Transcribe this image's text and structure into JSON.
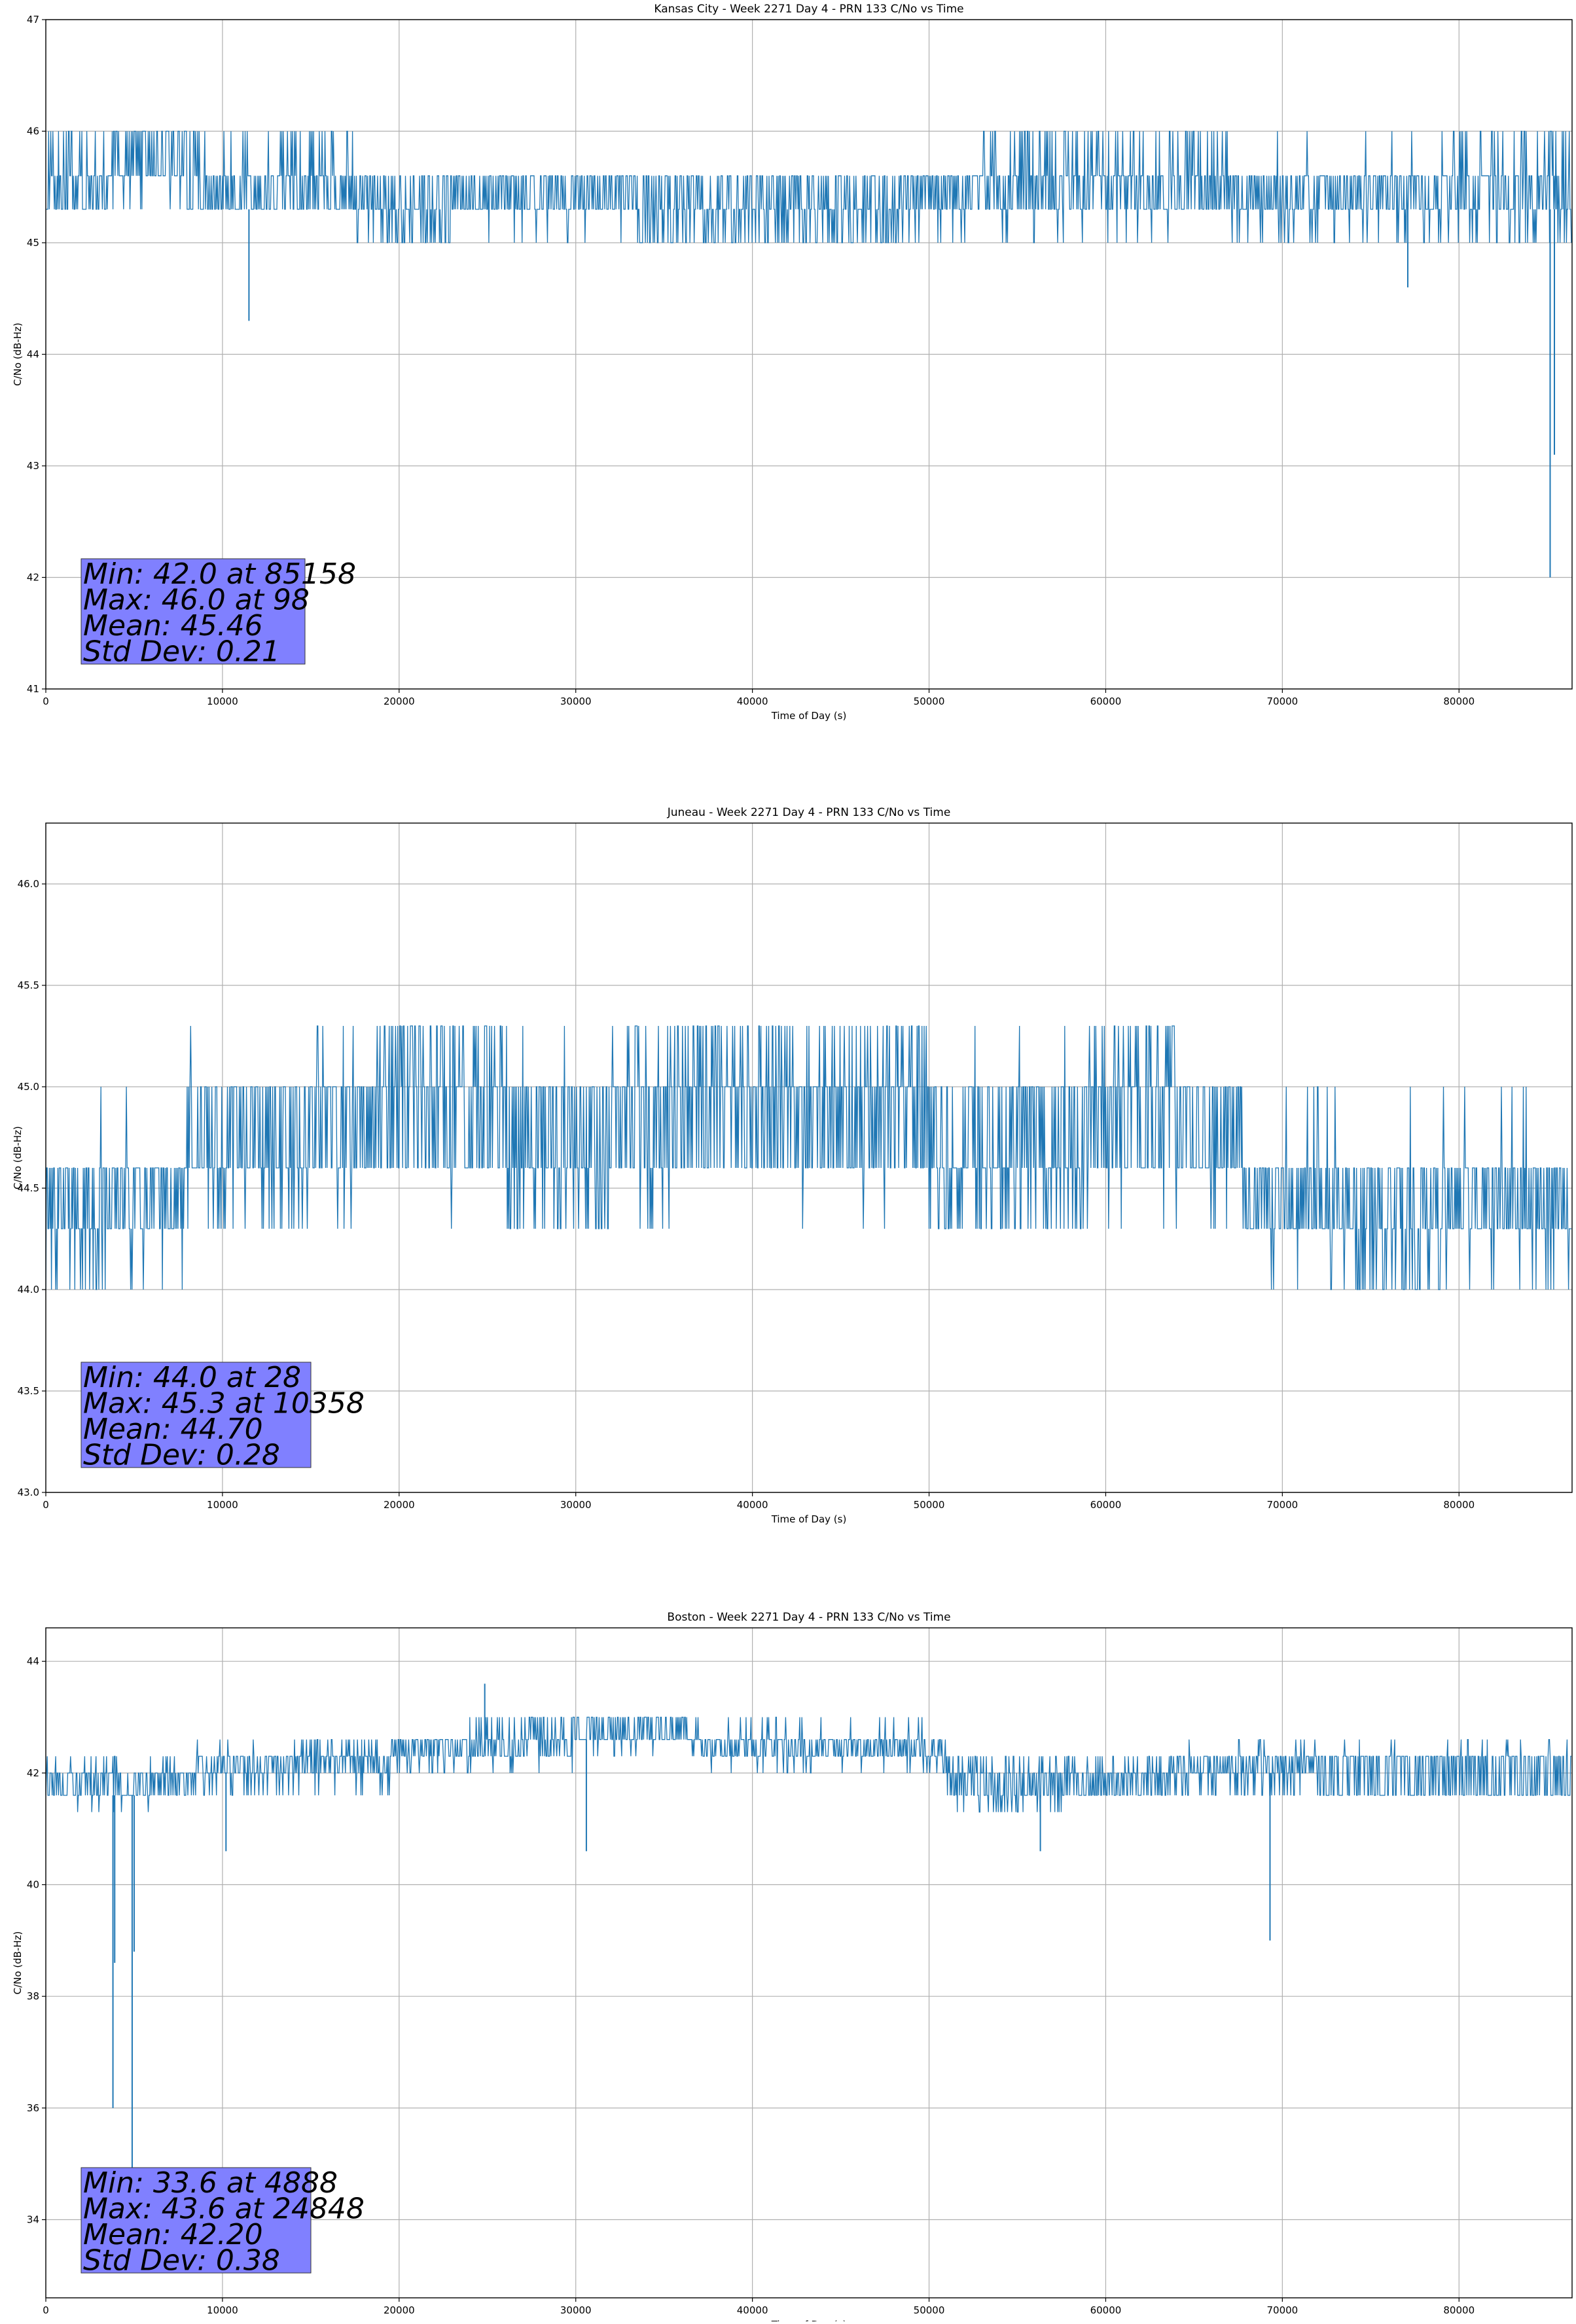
{
  "chart_data": [
    {
      "type": "line",
      "title": "Kansas City - Week 2271 Day 4 - PRN 133 C/No vs Time",
      "xlabel": "Time of Day (s)",
      "ylabel": "C/No (dB-Hz)",
      "xlim": [
        0,
        86400
      ],
      "ylim": [
        41,
        47
      ],
      "xticks": [
        0,
        10000,
        20000,
        30000,
        40000,
        50000,
        60000,
        70000,
        80000
      ],
      "yticks": [
        41,
        42,
        43,
        44,
        45,
        46,
        47
      ],
      "ytick_labels": [
        "41",
        "42",
        "43",
        "44",
        "45",
        "46",
        "47"
      ],
      "grid": true,
      "series_color": "#1f77b4",
      "segments": [
        {
          "x": [
            0,
            4000
          ],
          "base": [
            45.3,
            45.6
          ],
          "hi": 46.0,
          "hi_prob": 0.45,
          "lo": 45.3,
          "lo_prob": 0.05
        },
        {
          "x": [
            4000,
            8000
          ],
          "base": [
            45.6,
            45.6
          ],
          "hi": 46.0,
          "hi_prob": 0.85,
          "lo": 45.3,
          "lo_prob": 0.1
        },
        {
          "x": [
            8000,
            17500
          ],
          "base": [
            45.3,
            45.6
          ],
          "hi": 46.0,
          "hi_prob": 0.3,
          "lo": 45.3,
          "lo_prob": 0.1
        },
        {
          "x": [
            17500,
            19000
          ],
          "base": [
            45.3,
            45.6
          ],
          "hi": 45.6,
          "hi_prob": 0.0,
          "lo": 45.0,
          "lo_prob": 0.3
        },
        {
          "x": [
            19000,
            23000
          ],
          "base": [
            45.3,
            45.6
          ],
          "hi": 45.6,
          "hi_prob": 0.0,
          "lo": 45.0,
          "lo_prob": 0.5
        },
        {
          "x": [
            23000,
            33500
          ],
          "base": [
            45.3,
            45.6
          ],
          "hi": 45.6,
          "hi_prob": 0.0,
          "lo": 45.0,
          "lo_prob": 0.05
        },
        {
          "x": [
            33500,
            48500
          ],
          "base": [
            45.3,
            45.6
          ],
          "hi": 45.6,
          "hi_prob": 0.0,
          "lo": 45.0,
          "lo_prob": 0.55
        },
        {
          "x": [
            48500,
            53000
          ],
          "base": [
            45.3,
            45.6
          ],
          "hi": 45.6,
          "hi_prob": 0.0,
          "lo": 45.0,
          "lo_prob": 0.15
        },
        {
          "x": [
            53000,
            67000
          ],
          "base": [
            45.3,
            45.6
          ],
          "hi": 46.0,
          "hi_prob": 0.4,
          "lo": 45.0,
          "lo_prob": 0.05
        },
        {
          "x": [
            67000,
            79000
          ],
          "base": [
            45.3,
            45.6
          ],
          "hi": 46.0,
          "hi_prob": 0.03,
          "lo": 45.0,
          "lo_prob": 0.3
        },
        {
          "x": [
            79000,
            86400
          ],
          "base": [
            45.3,
            45.6
          ],
          "hi": 46.0,
          "hi_prob": 0.4,
          "lo": 45.0,
          "lo_prob": 0.25
        }
      ],
      "dips": [
        {
          "x": 11500,
          "y": 44.3
        },
        {
          "x": 77100,
          "y": 44.6
        },
        {
          "x": 85158,
          "y": 42.0
        },
        {
          "x": 85400,
          "y": 43.1
        }
      ],
      "stats_box": [
        "Min: 42.0 at 85158",
        "Max: 46.0 at 98",
        "Mean: 45.46",
        "Std Dev: 0.21"
      ]
    },
    {
      "type": "line",
      "title": "Juneau - Week 2271 Day 4 - PRN 133 C/No vs Time",
      "xlabel": "Time of Day (s)",
      "ylabel": "C/No (dB-Hz)",
      "xlim": [
        0,
        86400
      ],
      "ylim": [
        43.0,
        46.3
      ],
      "xticks": [
        0,
        10000,
        20000,
        30000,
        40000,
        50000,
        60000,
        70000,
        80000
      ],
      "yticks": [
        43.0,
        43.5,
        44.0,
        44.5,
        45.0,
        45.5,
        46.0
      ],
      "ytick_labels": [
        "43.0",
        "43.5",
        "44.0",
        "44.5",
        "45.0",
        "45.5",
        "46.0"
      ],
      "grid": true,
      "series_color": "#1f77b4",
      "segments": [
        {
          "x": [
            0,
            3000
          ],
          "base": [
            44.3,
            44.6
          ],
          "hi": 44.6,
          "hi_prob": 0.0,
          "lo": 44.0,
          "lo_prob": 0.35
        },
        {
          "x": [
            3000,
            8000
          ],
          "base": [
            44.3,
            44.6
          ],
          "hi": 45.0,
          "hi_prob": 0.05,
          "lo": 44.0,
          "lo_prob": 0.15
        },
        {
          "x": [
            8000,
            15000
          ],
          "base": [
            44.6,
            45.0
          ],
          "hi": 45.3,
          "hi_prob": 0.05,
          "lo": 44.3,
          "lo_prob": 0.3
        },
        {
          "x": [
            15000,
            19000
          ],
          "base": [
            44.6,
            45.0
          ],
          "hi": 45.3,
          "hi_prob": 0.15,
          "lo": 44.3,
          "lo_prob": 0.05
        },
        {
          "x": [
            19000,
            26000
          ],
          "base": [
            44.6,
            45.0
          ],
          "hi": 45.3,
          "hi_prob": 0.55,
          "lo": 44.3,
          "lo_prob": 0.02
        },
        {
          "x": [
            26000,
            32000
          ],
          "base": [
            44.6,
            45.0
          ],
          "hi": 45.3,
          "hi_prob": 0.1,
          "lo": 44.3,
          "lo_prob": 0.45
        },
        {
          "x": [
            32000,
            36000
          ],
          "base": [
            44.6,
            45.0
          ],
          "hi": 45.3,
          "hi_prob": 0.3,
          "lo": 44.3,
          "lo_prob": 0.2
        },
        {
          "x": [
            36000,
            50000
          ],
          "base": [
            44.6,
            45.0
          ],
          "hi": 45.3,
          "hi_prob": 0.45,
          "lo": 44.3,
          "lo_prob": 0.02
        },
        {
          "x": [
            50000,
            59000
          ],
          "base": [
            44.6,
            45.0
          ],
          "hi": 45.3,
          "hi_prob": 0.02,
          "lo": 44.3,
          "lo_prob": 0.4
        },
        {
          "x": [
            59000,
            64000
          ],
          "base": [
            44.6,
            45.0
          ],
          "hi": 45.3,
          "hi_prob": 0.5,
          "lo": 44.3,
          "lo_prob": 0.05
        },
        {
          "x": [
            64000,
            67700
          ],
          "base": [
            44.6,
            45.0
          ],
          "hi": 45.0,
          "hi_prob": 0.0,
          "lo": 44.3,
          "lo_prob": 0.1
        },
        {
          "x": [
            67700,
            74000
          ],
          "base": [
            44.3,
            44.6
          ],
          "hi": 45.0,
          "hi_prob": 0.05,
          "lo": 44.0,
          "lo_prob": 0.05
        },
        {
          "x": [
            74000,
            79000
          ],
          "base": [
            44.3,
            44.6
          ],
          "hi": 45.0,
          "hi_prob": 0.05,
          "lo": 44.0,
          "lo_prob": 0.55
        },
        {
          "x": [
            79000,
            86400
          ],
          "base": [
            44.3,
            44.6
          ],
          "hi": 45.0,
          "hi_prob": 0.08,
          "lo": 44.0,
          "lo_prob": 0.1
        }
      ],
      "dips": [],
      "stats_box": [
        "Min: 44.0 at 28",
        "Max: 45.3 at 10358",
        "Mean: 44.70",
        "Std Dev: 0.28"
      ]
    },
    {
      "type": "line",
      "title": "Boston - Week 2271 Day 4 - PRN 133 C/No vs Time",
      "xlabel": "Time of Day (s)",
      "ylabel": "C/No (dB-Hz)",
      "xlim": [
        0,
        86400
      ],
      "ylim": [
        32.6,
        44.6
      ],
      "xticks": [
        0,
        10000,
        20000,
        30000,
        40000,
        50000,
        60000,
        70000,
        80000
      ],
      "yticks": [
        34,
        36,
        38,
        40,
        42,
        44
      ],
      "ytick_labels": [
        "34",
        "36",
        "38",
        "40",
        "42",
        "44"
      ],
      "grid": true,
      "series_color": "#1f77b4",
      "segments": [
        {
          "x": [
            0,
            8500
          ],
          "base": [
            41.6,
            42.0
          ],
          "hi": 42.3,
          "hi_prob": 0.2,
          "lo": 41.3,
          "lo_prob": 0.1
        },
        {
          "x": [
            8500,
            14000
          ],
          "base": [
            42.0,
            42.3
          ],
          "hi": 42.6,
          "hi_prob": 0.05,
          "lo": 41.6,
          "lo_prob": 0.3
        },
        {
          "x": [
            14000,
            19500
          ],
          "base": [
            42.0,
            42.3
          ],
          "hi": 42.6,
          "hi_prob": 0.3,
          "lo": 41.6,
          "lo_prob": 0.15
        },
        {
          "x": [
            19500,
            24000
          ],
          "base": [
            42.3,
            42.6
          ],
          "hi": 42.6,
          "hi_prob": 0.0,
          "lo": 42.0,
          "lo_prob": 0.3
        },
        {
          "x": [
            24000,
            30000
          ],
          "base": [
            42.3,
            42.6
          ],
          "hi": 43.0,
          "hi_prob": 0.5,
          "lo": 42.0,
          "lo_prob": 0.15
        },
        {
          "x": [
            30000,
            37000
          ],
          "base": [
            42.6,
            43.0
          ],
          "hi": 43.0,
          "hi_prob": 0.0,
          "lo": 42.3,
          "lo_prob": 0.1
        },
        {
          "x": [
            37000,
            51000
          ],
          "base": [
            42.3,
            42.6
          ],
          "hi": 43.0,
          "hi_prob": 0.15,
          "lo": 42.0,
          "lo_prob": 0.1
        },
        {
          "x": [
            51000,
            58000
          ],
          "base": [
            41.6,
            42.0
          ],
          "hi": 42.3,
          "hi_prob": 0.3,
          "lo": 41.3,
          "lo_prob": 0.3
        },
        {
          "x": [
            58000,
            64000
          ],
          "base": [
            41.6,
            42.0
          ],
          "hi": 42.3,
          "hi_prob": 0.3,
          "lo": 41.6,
          "lo_prob": 0.0
        },
        {
          "x": [
            64000,
            72000
          ],
          "base": [
            42.0,
            42.3
          ],
          "hi": 42.6,
          "hi_prob": 0.1,
          "lo": 41.6,
          "lo_prob": 0.4
        },
        {
          "x": [
            72000,
            86400
          ],
          "base": [
            41.6,
            42.3
          ],
          "hi": 42.6,
          "hi_prob": 0.1,
          "lo": 41.6,
          "lo_prob": 0.05
        }
      ],
      "dips": [
        {
          "x": 3800,
          "y": 36.0
        },
        {
          "x": 3900,
          "y": 38.6
        },
        {
          "x": 4888,
          "y": 33.6
        },
        {
          "x": 5000,
          "y": 38.8
        },
        {
          "x": 10200,
          "y": 40.6
        },
        {
          "x": 30600,
          "y": 40.6
        },
        {
          "x": 56300,
          "y": 40.6
        },
        {
          "x": 69300,
          "y": 39.0
        },
        {
          "x": 24848,
          "y": 43.6,
          "up": true
        }
      ],
      "stats_box": [
        "Min: 33.6 at 4888",
        "Max: 43.6 at 24848",
        "Mean: 42.20",
        "Std Dev: 0.38"
      ]
    }
  ]
}
